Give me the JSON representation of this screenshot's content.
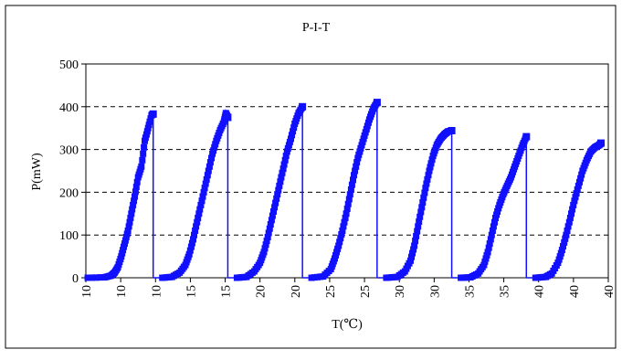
{
  "chart_data": {
    "type": "scatter",
    "title": "P-I-T",
    "xlabel": "T(℃)",
    "ylabel": "P(mW)",
    "ylim": [
      0,
      500
    ],
    "y_ticks": [
      "0",
      "100",
      "200",
      "300",
      "400",
      "500"
    ],
    "x_tick_labels": [
      "10",
      "10",
      "10",
      "15",
      "15",
      "20",
      "20",
      "25",
      "25",
      "30",
      "30",
      "35",
      "35",
      "40",
      "40",
      "40"
    ],
    "grid": "horizontal dashed",
    "legend": "none",
    "colors": {
      "series": "#1010ff",
      "frame": "#000000",
      "grid": "#000000"
    },
    "marker": "square",
    "series": [
      {
        "points": [
          [
            0,
            0
          ],
          [
            10,
            1
          ],
          [
            14,
            5
          ],
          [
            16,
            12
          ],
          [
            18,
            25
          ],
          [
            20,
            50
          ],
          [
            22,
            80
          ],
          [
            24,
            110
          ],
          [
            26,
            150
          ],
          [
            28,
            190
          ],
          [
            30,
            235
          ],
          [
            32,
            260
          ],
          [
            34,
            320
          ],
          [
            36,
            350
          ],
          [
            38,
            380
          ],
          [
            39,
            383
          ]
        ]
      },
      {
        "points": [
          [
            0,
            0
          ],
          [
            5,
            2
          ],
          [
            9,
            12
          ],
          [
            12,
            30
          ],
          [
            14,
            55
          ],
          [
            16,
            90
          ],
          [
            18,
            130
          ],
          [
            20,
            170
          ],
          [
            22,
            210
          ],
          [
            24,
            250
          ],
          [
            26,
            290
          ],
          [
            28,
            320
          ],
          [
            30,
            345
          ],
          [
            32,
            365
          ],
          [
            33,
            385
          ],
          [
            34,
            375
          ]
        ]
      },
      {
        "points": [
          [
            0,
            0
          ],
          [
            5,
            2
          ],
          [
            9,
            15
          ],
          [
            12,
            35
          ],
          [
            14,
            60
          ],
          [
            16,
            95
          ],
          [
            18,
            135
          ],
          [
            20,
            175
          ],
          [
            22,
            215
          ],
          [
            24,
            255
          ],
          [
            26,
            295
          ],
          [
            28,
            325
          ],
          [
            30,
            360
          ],
          [
            32,
            385
          ],
          [
            34,
            400
          ]
        ]
      },
      {
        "points": [
          [
            0,
            0
          ],
          [
            6,
            3
          ],
          [
            10,
            20
          ],
          [
            12,
            45
          ],
          [
            14,
            75
          ],
          [
            16,
            110
          ],
          [
            18,
            150
          ],
          [
            20,
            195
          ],
          [
            22,
            240
          ],
          [
            24,
            280
          ],
          [
            26,
            310
          ],
          [
            28,
            340
          ],
          [
            30,
            370
          ],
          [
            32,
            395
          ],
          [
            34,
            410
          ]
        ]
      },
      {
        "points": [
          [
            0,
            0
          ],
          [
            6,
            2
          ],
          [
            10,
            15
          ],
          [
            13,
            40
          ],
          [
            15,
            75
          ],
          [
            17,
            120
          ],
          [
            19,
            165
          ],
          [
            21,
            210
          ],
          [
            23,
            250
          ],
          [
            25,
            285
          ],
          [
            27,
            310
          ],
          [
            29,
            325
          ],
          [
            31,
            335
          ],
          [
            33,
            342
          ],
          [
            35,
            344
          ]
        ]
      },
      {
        "points": [
          [
            0,
            0
          ],
          [
            5,
            1
          ],
          [
            9,
            10
          ],
          [
            12,
            30
          ],
          [
            14,
            60
          ],
          [
            16,
            100
          ],
          [
            18,
            140
          ],
          [
            20,
            170
          ],
          [
            22,
            195
          ],
          [
            24,
            215
          ],
          [
            26,
            235
          ],
          [
            28,
            260
          ],
          [
            30,
            285
          ],
          [
            32,
            310
          ],
          [
            34,
            330
          ]
        ]
      },
      {
        "points": [
          [
            0,
            0
          ],
          [
            5,
            2
          ],
          [
            8,
            10
          ],
          [
            11,
            35
          ],
          [
            13,
            65
          ],
          [
            15,
            100
          ],
          [
            17,
            140
          ],
          [
            19,
            180
          ],
          [
            21,
            215
          ],
          [
            23,
            250
          ],
          [
            25,
            275
          ],
          [
            27,
            295
          ],
          [
            29,
            305
          ],
          [
            31,
            310
          ],
          [
            32,
            315
          ]
        ]
      }
    ]
  }
}
